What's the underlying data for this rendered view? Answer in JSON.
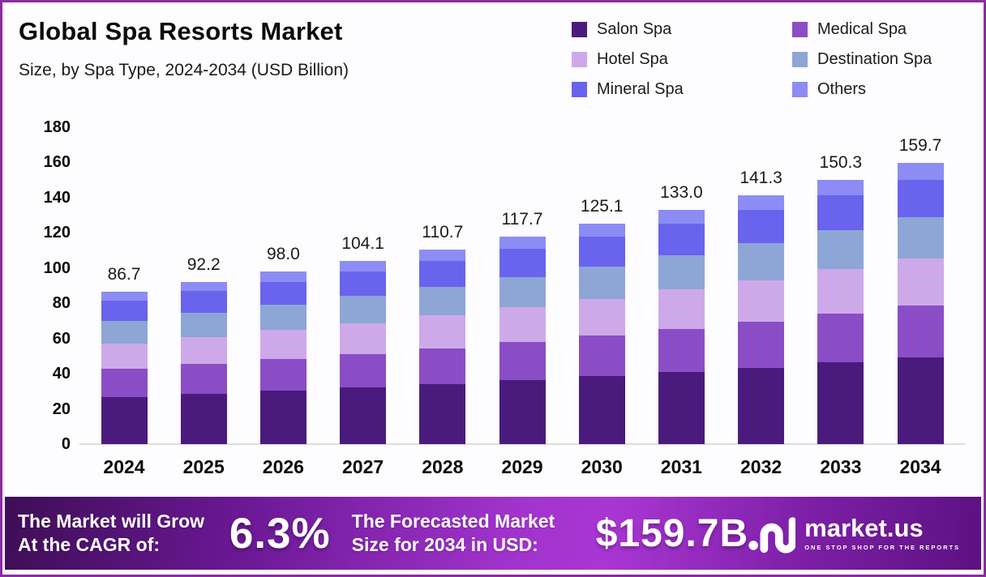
{
  "frame": {
    "border_color": "#8B2BA2",
    "background": "#FDFCFE"
  },
  "header": {
    "title": "Global Spa Resorts Market",
    "subtitle": "Size, by Spa Type, 2024-2034 (USD Billion)"
  },
  "chart_data": {
    "type": "bar",
    "stacked": true,
    "title": "Global Spa Resorts Market",
    "subtitle": "Size, by Spa Type, 2024-2034 (USD Billion)",
    "unit": "USD Billion",
    "categories": [
      "2024",
      "2025",
      "2026",
      "2027",
      "2028",
      "2029",
      "2030",
      "2031",
      "2032",
      "2033",
      "2034"
    ],
    "series": [
      {
        "name": "Salon Spa",
        "color": "#4A1B7D",
        "values": [
          26.7,
          28.4,
          30.2,
          32.1,
          34.1,
          36.2,
          38.5,
          41.0,
          43.5,
          46.3,
          49.2
        ]
      },
      {
        "name": "Medical Spa",
        "color": "#8A4DC6",
        "values": [
          16.0,
          17.0,
          18.0,
          19.2,
          20.4,
          21.7,
          23.0,
          24.5,
          26.0,
          27.7,
          29.4
        ]
      },
      {
        "name": "Hotel Spa",
        "color": "#CDA9E9",
        "values": [
          14.6,
          15.5,
          16.5,
          17.5,
          18.6,
          19.8,
          21.0,
          22.3,
          23.7,
          25.3,
          26.8
        ]
      },
      {
        "name": "Destination Spa",
        "color": "#8DA6D6",
        "values": [
          12.7,
          13.6,
          14.4,
          15.3,
          16.3,
          17.3,
          18.4,
          19.6,
          20.8,
          22.1,
          23.5
        ]
      },
      {
        "name": "Mineral Spa",
        "color": "#6963EE",
        "values": [
          11.6,
          12.4,
          13.1,
          13.9,
          14.8,
          15.8,
          16.8,
          17.8,
          18.9,
          20.1,
          21.4
        ]
      },
      {
        "name": "Others",
        "color": "#8C8CF4",
        "values": [
          5.1,
          5.3,
          5.8,
          6.1,
          6.5,
          6.9,
          7.4,
          7.8,
          8.4,
          8.8,
          9.4
        ]
      }
    ],
    "totals": [
      86.7,
      92.2,
      98.0,
      104.1,
      110.7,
      117.7,
      125.1,
      133.0,
      141.3,
      150.3,
      159.7
    ],
    "total_labels": [
      "86.7",
      "92.2",
      "98.0",
      "104.1",
      "110.7",
      "117.7",
      "125.1",
      "133.0",
      "141.3",
      "150.3",
      "159.7"
    ],
    "y_ticks": [
      0,
      20,
      40,
      60,
      80,
      100,
      120,
      140,
      160,
      180
    ],
    "ylim": [
      0,
      180
    ],
    "grid": false,
    "legend_position": "top-right"
  },
  "banner": {
    "cagr_label_line1": "The Market will Grow",
    "cagr_label_line2": "At the CAGR of:",
    "cagr_value": "6.3%",
    "forecast_label_line1": "The Forecasted Market",
    "forecast_label_line2": "Size for 2034 in USD:",
    "forecast_value": "$159.7B",
    "logo_text": "market.us",
    "logo_tagline": "ONE STOP SHOP FOR THE REPORTS",
    "gradient_colors": [
      "#3E0E56",
      "#6A1894",
      "#A133CC",
      "#A936D3",
      "#7C1FA6",
      "#5C1181"
    ]
  }
}
